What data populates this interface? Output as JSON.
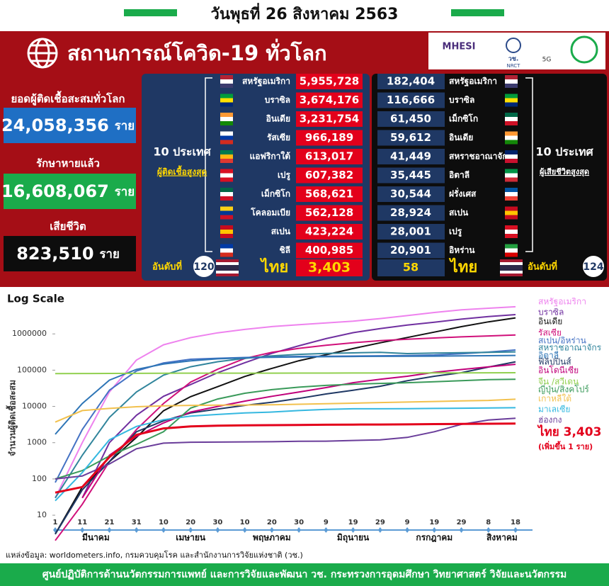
{
  "header": {
    "date": "วันพุธที่ 26 สิงหาคม 2563"
  },
  "banner": {
    "title": "สถานการณ์โควิด-19 ทั่วโลก",
    "logos": [
      "MHESI",
      "วช.",
      "NRCT",
      "5G"
    ]
  },
  "summary": {
    "unit": "ราย",
    "total_label": "ยอดผู้ติดเชื้อสะสมทั่วโลก",
    "total_value": "24,058,356",
    "recovered_label": "รักษาหายแล้ว",
    "recovered_value": "16,608,067",
    "deaths_label": "เสียชีวิต",
    "deaths_value": "823,510"
  },
  "infected": {
    "heading": [
      "10 ประเทศ",
      "ผู้ติดเชื้อสูงสุด"
    ],
    "rows": [
      {
        "country": "สหรัฐอเมริกา",
        "value": "5,955,728"
      },
      {
        "country": "บราซิล",
        "value": "3,674,176"
      },
      {
        "country": "อินเดีย",
        "value": "3,231,754"
      },
      {
        "country": "รัสเซีย",
        "value": "966,189"
      },
      {
        "country": "แอฟริกาใต้",
        "value": "613,017"
      },
      {
        "country": "เปรู",
        "value": "607,382"
      },
      {
        "country": "เม็กซิโก",
        "value": "568,621"
      },
      {
        "country": "โคลอมเบีย",
        "value": "562,128"
      },
      {
        "country": "สเปน",
        "value": "423,224"
      },
      {
        "country": "ชิลี",
        "value": "400,985"
      }
    ],
    "rank_label": "อันดับที่",
    "rank": "120",
    "thai_country": "ไทย",
    "thai_value": "3,403"
  },
  "deaths": {
    "heading": [
      "10 ประเทศ",
      "ผู้เสียชีวิตสูงสุด"
    ],
    "rows": [
      {
        "country": "สหรัฐอเมริกา",
        "value": "182,404"
      },
      {
        "country": "บราซิล",
        "value": "116,666"
      },
      {
        "country": "เม็กซิโก",
        "value": "61,450"
      },
      {
        "country": "อินเดีย",
        "value": "59,612"
      },
      {
        "country": "สหราชอาณาจักร",
        "value": "41,449"
      },
      {
        "country": "อิตาลี",
        "value": "35,445"
      },
      {
        "country": "ฝรั่งเศส",
        "value": "30,544"
      },
      {
        "country": "สเปน",
        "value": "28,924"
      },
      {
        "country": "เปรู",
        "value": "28,001"
      },
      {
        "country": "อิหร่าน",
        "value": "20,901"
      }
    ],
    "rank_label": "อันดับที่",
    "rank": "124",
    "thai_country": "ไทย",
    "thai_value": "58"
  },
  "chart_data": {
    "type": "line",
    "title": "Log Scale",
    "y_label": "จำนวนผู้ติดเชื้อสะสม",
    "log_scale": true,
    "grid": false,
    "ylim": [
      7,
      8000000
    ],
    "yticks": [
      10,
      100,
      1000,
      10000,
      100000,
      1000000
    ],
    "categories": [
      "1",
      "11",
      "21",
      "31",
      "10",
      "20",
      "30",
      "10",
      "20",
      "30",
      "9",
      "19",
      "29",
      "9",
      "19",
      "29",
      "8",
      "18"
    ],
    "months": [
      "มีนาคม",
      "เมษายน",
      "พฤษภาคม",
      "มิถุนายน",
      "กรกฎาคม",
      "สิงหาคม"
    ],
    "annotation": "(เพิ่มขึ้น 1 ราย)",
    "series": [
      {
        "name": "สหรัฐอเมริกา",
        "color": "#ee82ee",
        "values": [
          30,
          1000,
          25000,
          190000,
          500000,
          790000,
          1070000,
          1330000,
          1590000,
          1800000,
          2000000,
          2250000,
          2650000,
          3200000,
          3900000,
          4600000,
          5100000,
          5600000
        ]
      },
      {
        "name": "บราซิล",
        "color": "#7030a0",
        "values": [
          null,
          30,
          1000,
          5700,
          19000,
          40000,
          85000,
          160000,
          290000,
          470000,
          740000,
          1080000,
          1400000,
          1750000,
          2100000,
          2550000,
          3000000,
          3400000
        ]
      },
      {
        "name": "อินเดีย",
        "color": "#111111",
        "values": [
          3,
          60,
          300,
          1400,
          7600,
          18600,
          35000,
          67000,
          112000,
          182000,
          267000,
          395000,
          567000,
          794000,
          1120000,
          1580000,
          2150000,
          2770000
        ]
      },
      {
        "name": "รัสเซีย",
        "color": "#d0107a",
        "values": [
          2,
          20,
          300,
          2300,
          12000,
          47000,
          106000,
          210000,
          310000,
          400000,
          485000,
          570000,
          650000,
          710000,
          770000,
          830000,
          880000,
          930000
        ]
      },
      {
        "name": "สเปน/อิหร่าน",
        "color": "#4472c4",
        "values": [
          80,
          2300,
          28000,
          95000,
          158000,
          200000,
          213000,
          224000,
          232000,
          239000,
          242000,
          245000,
          249000,
          253000,
          262000,
          282000,
          315000,
          360000
        ]
      },
      {
        "name": "สหราชอาณาจักร",
        "color": "#31859c",
        "values": [
          30,
          450,
          5000,
          25000,
          73000,
          124000,
          171000,
          211000,
          248000,
          272000,
          289000,
          300000,
          311000,
          287000,
          295000,
          302000,
          309000,
          319000
        ]
      },
      {
        "name": "อิตาลี",
        "color": "#2e75b6",
        "values": [
          1700,
          12000,
          53000,
          105000,
          147000,
          181000,
          205000,
          219000,
          227000,
          232000,
          235000,
          238000,
          240000,
          242000,
          244000,
          247000,
          250000,
          255000
        ]
      },
      {
        "name": "ฟิลิปปินส์",
        "color": "#1f3864",
        "values": [
          3,
          50,
          300,
          2000,
          4000,
          6600,
          8500,
          10700,
          13000,
          16600,
          22000,
          28000,
          36000,
          51000,
          68000,
          85000,
          122000,
          170000
        ]
      },
      {
        "name": "อินโดนีเซีย",
        "color": "#c0007a",
        "values": [
          null,
          30,
          450,
          1500,
          3500,
          7000,
          10000,
          14000,
          19000,
          25000,
          33000,
          45000,
          56000,
          68000,
          87000,
          104000,
          123000,
          145000
        ]
      },
      {
        "name": "จีน /สวีเดน",
        "color": "#92d050",
        "values": [
          80000,
          80800,
          81300,
          81500,
          81900,
          82700,
          82900,
          82900,
          82900,
          83000,
          83000,
          83300,
          83500,
          83600,
          83700,
          84100,
          84600,
          84900
        ]
      },
      {
        "name": "ญี่ปุ่น/สิงคโปร์",
        "color": "#3a9a5a",
        "values": [
          100,
          170,
          430,
          900,
          2000,
          9000,
          16000,
          23000,
          29000,
          34000,
          38000,
          41000,
          43000,
          45000,
          48000,
          51000,
          55000,
          56000
        ]
      },
      {
        "name": "เกาหลีใต้",
        "color": "#f2c14e",
        "values": [
          3700,
          7700,
          8800,
          9800,
          10400,
          10700,
          10800,
          10900,
          11100,
          11500,
          11900,
          12300,
          12800,
          13200,
          13700,
          14200,
          14600,
          15800
        ]
      },
      {
        "name": "มาเลเซีย",
        "color": "#35b8e0",
        "values": [
          25,
          150,
          1200,
          2800,
          4300,
          5400,
          6000,
          6600,
          7000,
          7700,
          8300,
          8600,
          8600,
          8700,
          8800,
          8900,
          9100,
          9200
        ]
      },
      {
        "name": "ฮ่องกง",
        "color": "#6a3d9a",
        "values": [
          100,
          120,
          260,
          680,
          970,
          1030,
          1040,
          1050,
          1060,
          1090,
          1100,
          1150,
          1200,
          1400,
          2000,
          3200,
          4200,
          4700
        ]
      },
      {
        "name": "ไทย 3,403",
        "color": "#e3001b",
        "values": [
          42,
          60,
          400,
          1650,
          2470,
          2800,
          2950,
          3000,
          3040,
          3080,
          3120,
          3150,
          3170,
          3200,
          3250,
          3300,
          3330,
          3380
        ]
      }
    ]
  },
  "footer": {
    "source": "แหล่งข้อมูล: worldometers.info, กรมควบคุมโรค และสำนักงานการวิจัยแห่งชาติ (วช.)",
    "org": "ศูนย์ปฏิบัติการด้านนวัตกรรมการแพทย์ และการวิจัยและพัฒนา  วช.   กระทรวงการอุดมศึกษา วิทยาศาสตร์ วิจัยและนวัตกรรม"
  }
}
